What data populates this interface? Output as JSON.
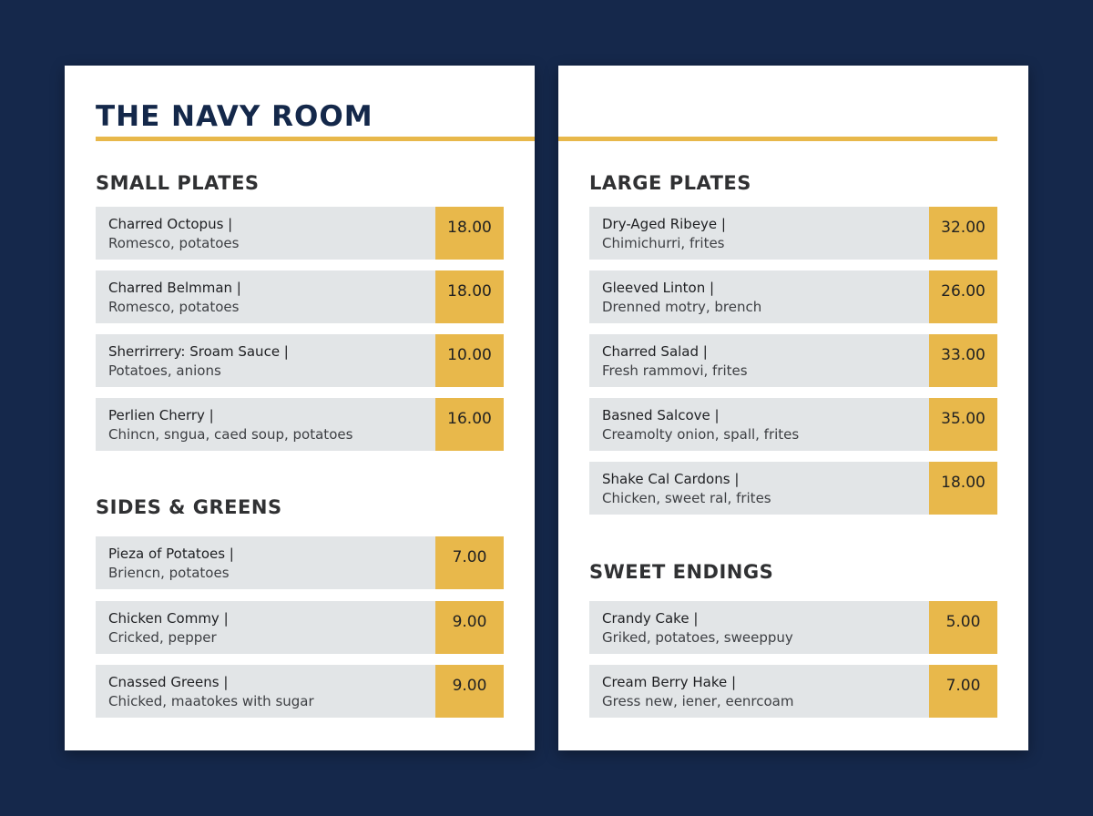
{
  "menu": {
    "title": "THE NAVY ROOM"
  },
  "colors": {
    "background": "#15284b",
    "accent": "#e8b84b",
    "item_bg": "#e2e5e7",
    "title": "#14284a"
  },
  "sections": {
    "small_plates": {
      "title": "SMALL PLATES",
      "items": [
        {
          "name": "Charred Octopus |",
          "desc": "Romesco, potatoes",
          "price": "18.00"
        },
        {
          "name": "Charred Belmman |",
          "desc": "Romesco, potatoes",
          "price": "18.00"
        },
        {
          "name": "Sherrirrery: Sroam Sauce |",
          "desc": "Potatoes, anions",
          "price": "10.00"
        },
        {
          "name": "Perlien Cherry |",
          "desc": "Chincn, sngua, caed soup, potatoes",
          "price": "16.00"
        }
      ]
    },
    "sides_greens": {
      "title": "SIDES & GREENS",
      "items": [
        {
          "name": "Pieza of Potatoes |",
          "desc": "Briencn, potatoes",
          "price": "7.00"
        },
        {
          "name": "Chicken Commy |",
          "desc": "Cricked, pepper",
          "price": "9.00"
        },
        {
          "name": "Cnassed Greens |",
          "desc": "Chicked, maatokes with sugar",
          "price": "9.00"
        }
      ]
    },
    "large_plates": {
      "title": "LARGE PLATES",
      "items": [
        {
          "name": "Dry-Aged Ribeye |",
          "desc": "Chimichurri, frites",
          "price": "32.00"
        },
        {
          "name": "Gleeved Linton |",
          "desc": "Drenned motry, brench",
          "price": "26.00"
        },
        {
          "name": "Charred Salad |",
          "desc": "Fresh rammovi, frites",
          "price": "33.00"
        },
        {
          "name": "Basned Salcove |",
          "desc": "Creamolty onion, spall, frites",
          "price": "35.00"
        },
        {
          "name": "Shake Cal Cardons |",
          "desc": "Chicken, sweet ral, frites",
          "price": "18.00"
        }
      ]
    },
    "sweet_endings": {
      "title": "SWEET ENDINGS",
      "items": [
        {
          "name": "Crandy Cake |",
          "desc": "Griked, potatoes, sweeppuy",
          "price": "5.00"
        },
        {
          "name": "Cream Berry Hake |",
          "desc": "Gress new, iener, eenrcoam",
          "price": "7.00"
        }
      ]
    }
  }
}
